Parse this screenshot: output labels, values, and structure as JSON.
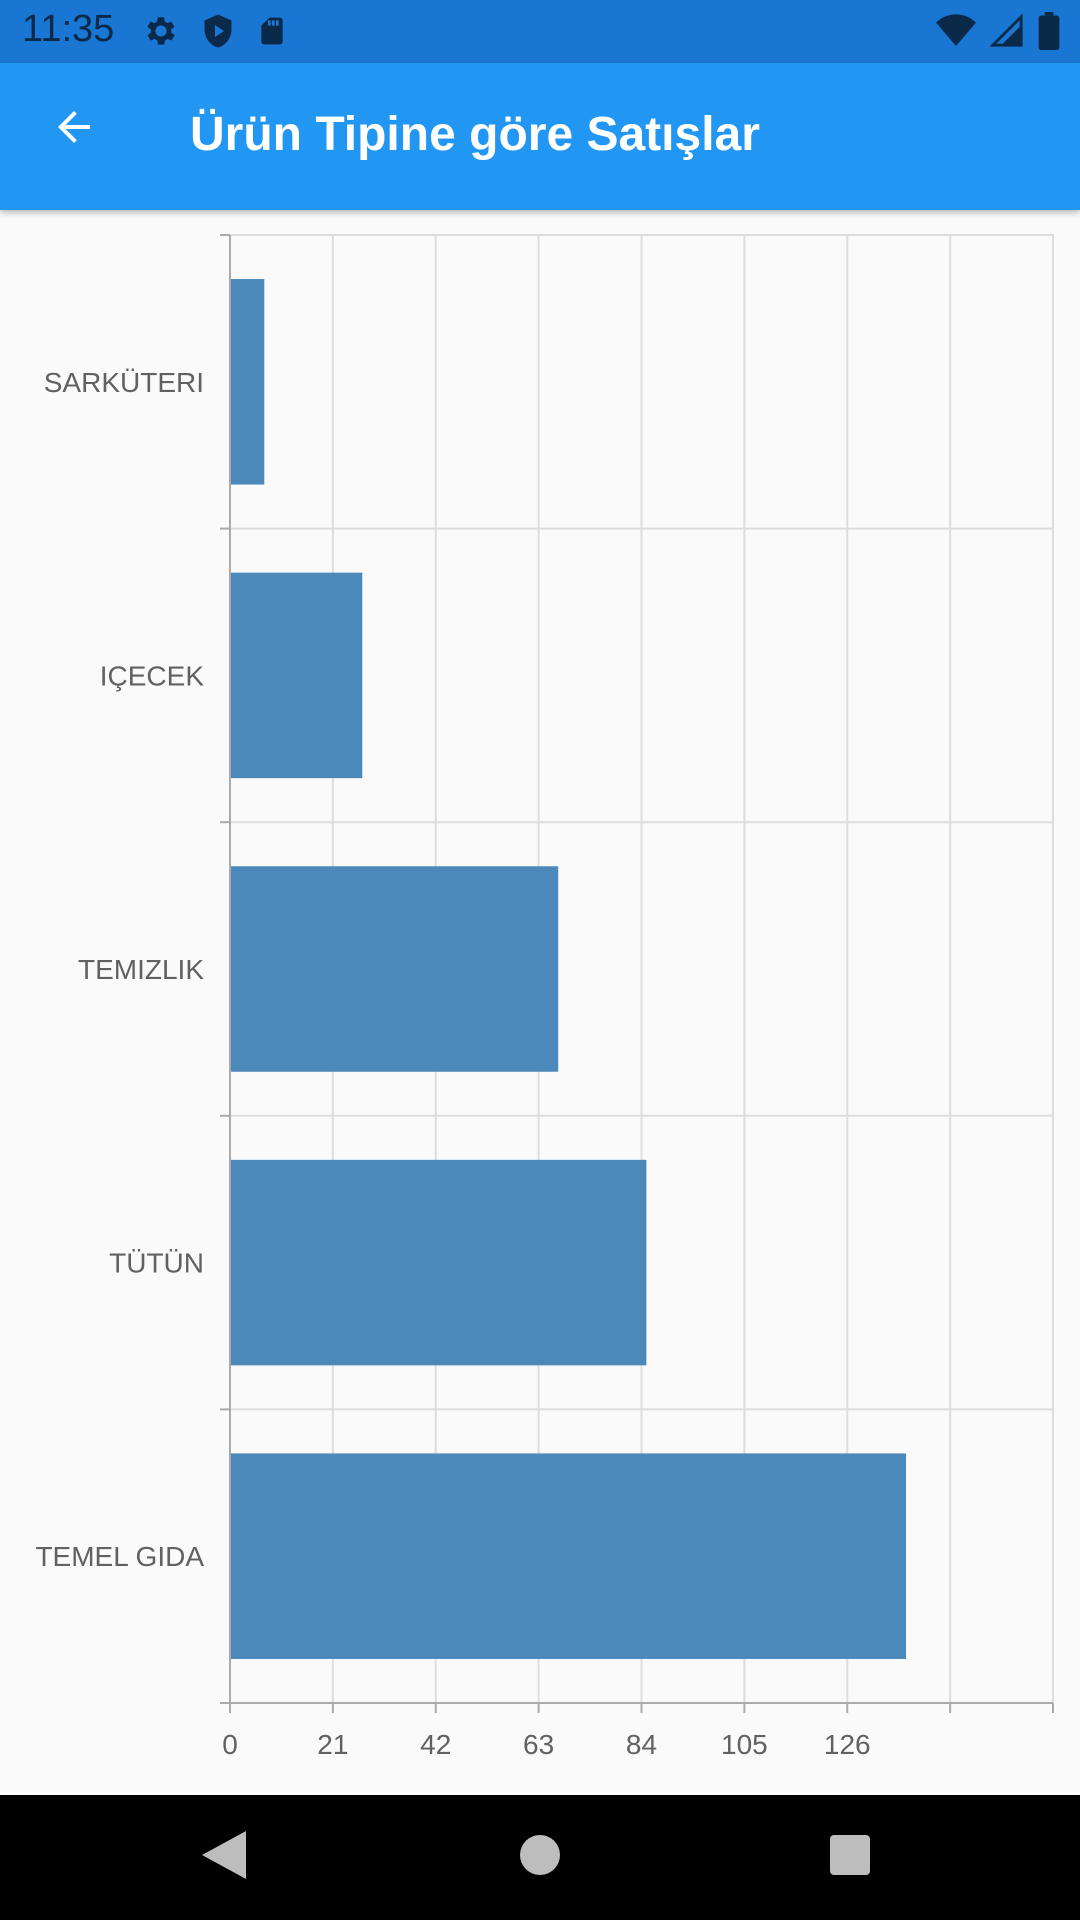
{
  "status_bar": {
    "time": "11:35",
    "icons_left": [
      "gear-icon",
      "shield-icon",
      "sd-card-icon"
    ],
    "icons_right": [
      "wifi-icon",
      "cell-signal-icon",
      "battery-icon"
    ]
  },
  "app_bar": {
    "title": "Ürün Tipine göre Satışlar",
    "back_icon": "arrow-back-icon"
  },
  "colors": {
    "status_bar": "#1976d2",
    "app_bar": "#2196f3",
    "bar": "#4c89bb",
    "grid": "#dddddd",
    "axis": "#aaaaaa",
    "label": "#616161"
  },
  "chart_data": {
    "type": "bar",
    "orientation": "horizontal",
    "categories": [
      "SARKÜTERI",
      "IÇECEK",
      "TEMIZLIK",
      "TÜTÜN",
      "TEMEL GIDA"
    ],
    "values": [
      7,
      27,
      67,
      85,
      138
    ],
    "x_ticks": [
      0,
      21,
      42,
      63,
      84,
      105,
      126
    ],
    "xlim": [
      0,
      168
    ],
    "grid": true,
    "legend": "none"
  },
  "nav_bar": {
    "icons": [
      "back-triangle-icon",
      "home-circle-icon",
      "recents-square-icon"
    ]
  }
}
